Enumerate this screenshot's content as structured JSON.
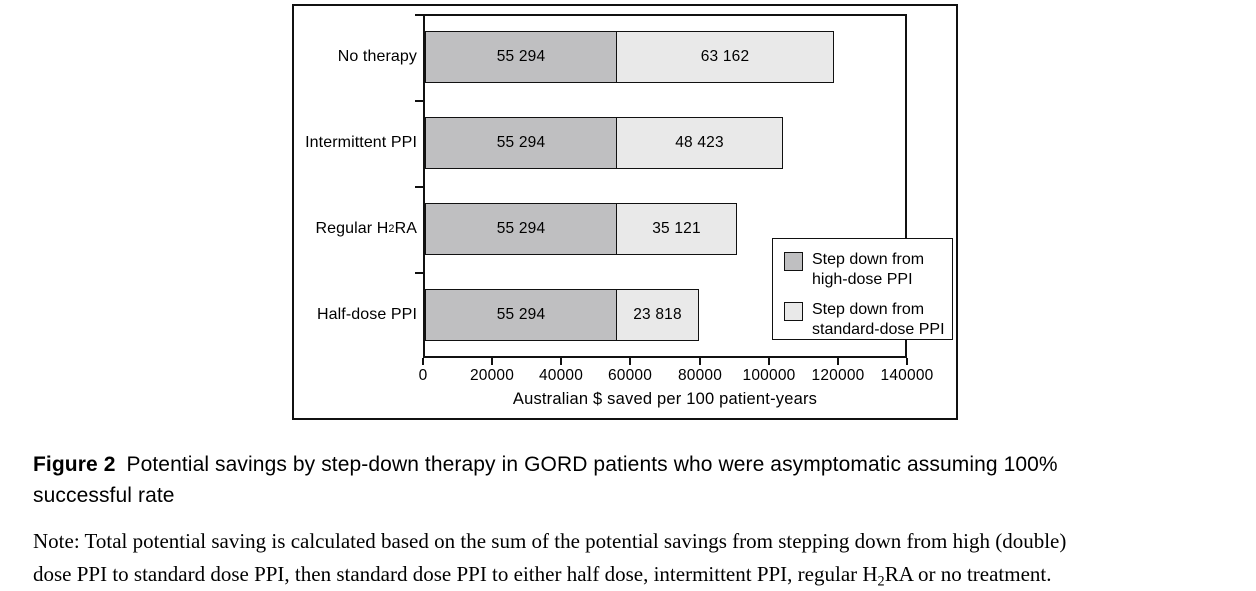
{
  "figure": {
    "caption_label": "Figure 2",
    "caption_line1": "Potential savings by step-down therapy in GORD patients who were asymptomatic assuming 100%",
    "caption_line2": "successful rate",
    "note_line1": "Note: Total potential saving is calculated based on the sum of the potential savings from stepping down from high (double)",
    "note_line2_pre": "dose PPI to standard dose PPI, then standard dose PPI to either half dose, intermittent PPI, regular H",
    "note_line2_sub": "2",
    "note_line2_post": "RA or no treatment."
  },
  "chart_data": {
    "type": "bar",
    "orientation": "horizontal",
    "stacked": true,
    "title": "",
    "xlabel": "Australian $ saved per 100 patient-years",
    "ylabel": "",
    "xlim": [
      0,
      140000
    ],
    "xticks": [
      0,
      20000,
      40000,
      60000,
      80000,
      100000,
      120000,
      140000
    ],
    "xtick_labels": [
      "0",
      "20000",
      "40000",
      "60000",
      "80000",
      "100000",
      "120000",
      "140000"
    ],
    "grid": false,
    "legend_position": "inside-right",
    "categories": [
      "No therapy",
      "Intermittent PPI",
      "Regular H2RA",
      "Half-dose PPI"
    ],
    "categories_display": [
      [
        {
          "t": "No therapy"
        }
      ],
      [
        {
          "t": "Intermittent PPI"
        }
      ],
      [
        {
          "t": "Regular H"
        },
        {
          "t": "2",
          "sub": true
        },
        {
          "t": "RA"
        }
      ],
      [
        {
          "t": "Half-dose PPI"
        }
      ]
    ],
    "series": [
      {
        "name": "Step down from high-dose PPI",
        "legend_lines": [
          "Step down from",
          "high-dose PPI"
        ],
        "color": "#bfbfc1",
        "values": [
          55294,
          55294,
          55294,
          55294
        ],
        "value_labels": [
          "55 294",
          "55 294",
          "55 294",
          "55 294"
        ]
      },
      {
        "name": "Step down from standard-dose PPI",
        "legend_lines": [
          "Step down from",
          "standard-dose PPI"
        ],
        "color": "#e9e9e9",
        "values": [
          63162,
          48423,
          35121,
          23818
        ],
        "value_labels": [
          "63 162",
          "48 423",
          "35 121",
          "23 818"
        ]
      }
    ]
  },
  "colors": {
    "high_dose": "#bfbfc1",
    "standard_dose": "#e9e9e9",
    "axis": "#111111",
    "background": "#ffffff"
  }
}
